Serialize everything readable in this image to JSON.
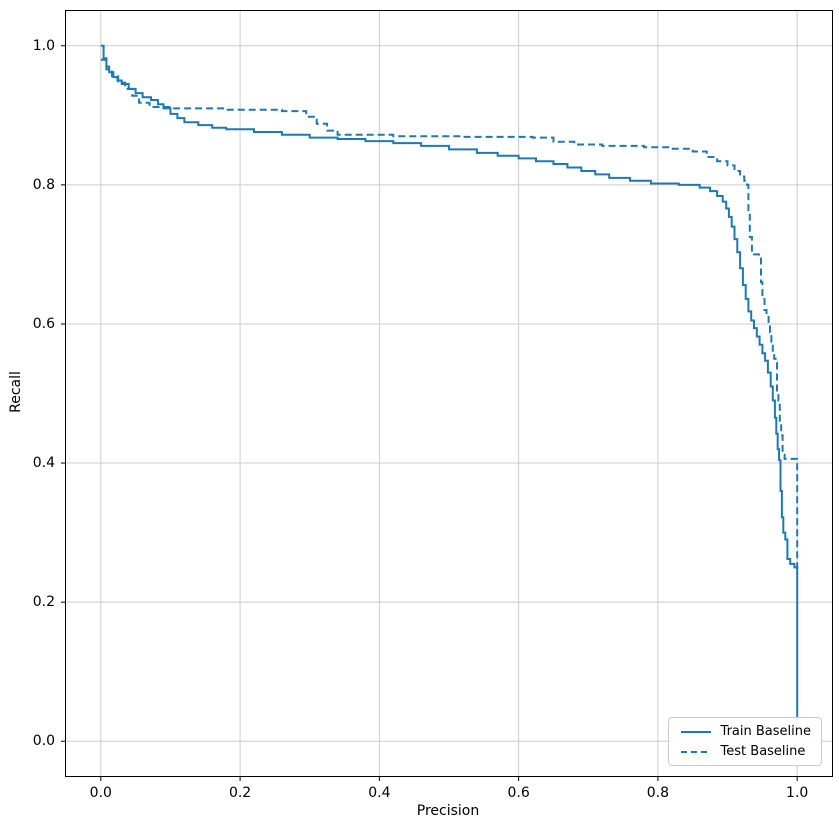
{
  "figure": {
    "background": "#ffffff"
  },
  "chart_data": {
    "type": "line",
    "title": "",
    "xlabel": "Precision",
    "ylabel": "Recall",
    "xlim": [
      -0.05,
      1.05
    ],
    "ylim": [
      -0.05,
      1.05
    ],
    "xticks": [
      0.0,
      0.2,
      0.4,
      0.6,
      0.8,
      1.0
    ],
    "yticks": [
      0.0,
      0.2,
      0.4,
      0.6,
      0.8,
      1.0
    ],
    "xtick_labels": [
      "0.0",
      "0.2",
      "0.4",
      "0.6",
      "0.8",
      "1.0"
    ],
    "ytick_labels": [
      "0.0",
      "0.2",
      "0.4",
      "0.6",
      "0.8",
      "1.0"
    ],
    "grid": true,
    "grid_color": "#cccccc",
    "line_color": "#1f77b4",
    "legend_position": "lower right",
    "series": [
      {
        "name": "Train Baseline",
        "style": "solid",
        "points": [
          [
            0.0,
            1.0
          ],
          [
            0.004,
            0.982
          ],
          [
            0.008,
            0.97
          ],
          [
            0.012,
            0.962
          ],
          [
            0.018,
            0.955
          ],
          [
            0.024,
            0.95
          ],
          [
            0.03,
            0.945
          ],
          [
            0.04,
            0.938
          ],
          [
            0.05,
            0.932
          ],
          [
            0.06,
            0.926
          ],
          [
            0.072,
            0.922
          ],
          [
            0.082,
            0.916
          ],
          [
            0.09,
            0.91
          ],
          [
            0.1,
            0.902
          ],
          [
            0.11,
            0.896
          ],
          [
            0.12,
            0.89
          ],
          [
            0.14,
            0.886
          ],
          [
            0.16,
            0.882
          ],
          [
            0.18,
            0.88
          ],
          [
            0.22,
            0.876
          ],
          [
            0.26,
            0.872
          ],
          [
            0.3,
            0.868
          ],
          [
            0.34,
            0.866
          ],
          [
            0.38,
            0.863
          ],
          [
            0.42,
            0.86
          ],
          [
            0.46,
            0.856
          ],
          [
            0.5,
            0.851
          ],
          [
            0.54,
            0.846
          ],
          [
            0.57,
            0.842
          ],
          [
            0.6,
            0.838
          ],
          [
            0.625,
            0.834
          ],
          [
            0.65,
            0.83
          ],
          [
            0.67,
            0.825
          ],
          [
            0.69,
            0.82
          ],
          [
            0.71,
            0.815
          ],
          [
            0.73,
            0.81
          ],
          [
            0.76,
            0.806
          ],
          [
            0.79,
            0.802
          ],
          [
            0.83,
            0.8
          ],
          [
            0.86,
            0.796
          ],
          [
            0.875,
            0.791
          ],
          [
            0.885,
            0.784
          ],
          [
            0.893,
            0.776
          ],
          [
            0.898,
            0.766
          ],
          [
            0.902,
            0.754
          ],
          [
            0.906,
            0.74
          ],
          [
            0.91,
            0.722
          ],
          [
            0.914,
            0.703
          ],
          [
            0.918,
            0.68
          ],
          [
            0.922,
            0.656
          ],
          [
            0.926,
            0.636
          ],
          [
            0.93,
            0.618
          ],
          [
            0.934,
            0.605
          ],
          [
            0.938,
            0.594
          ],
          [
            0.942,
            0.582
          ],
          [
            0.946,
            0.57
          ],
          [
            0.95,
            0.558
          ],
          [
            0.954,
            0.547
          ],
          [
            0.958,
            0.53
          ],
          [
            0.962,
            0.51
          ],
          [
            0.965,
            0.49
          ],
          [
            0.968,
            0.465
          ],
          [
            0.97,
            0.442
          ],
          [
            0.972,
            0.42
          ],
          [
            0.974,
            0.404
          ],
          [
            0.976,
            0.36
          ],
          [
            0.978,
            0.322
          ],
          [
            0.98,
            0.3
          ],
          [
            0.983,
            0.29
          ],
          [
            0.986,
            0.262
          ],
          [
            0.99,
            0.255
          ],
          [
            0.996,
            0.25
          ],
          [
            1.0,
            0.03
          ]
        ]
      },
      {
        "name": "Test Baseline",
        "style": "dashed",
        "points": [
          [
            0.0,
            0.98
          ],
          [
            0.008,
            0.966
          ],
          [
            0.016,
            0.956
          ],
          [
            0.025,
            0.947
          ],
          [
            0.035,
            0.938
          ],
          [
            0.045,
            0.928
          ],
          [
            0.055,
            0.918
          ],
          [
            0.07,
            0.912
          ],
          [
            0.1,
            0.91
          ],
          [
            0.18,
            0.908
          ],
          [
            0.26,
            0.906
          ],
          [
            0.295,
            0.898
          ],
          [
            0.31,
            0.888
          ],
          [
            0.325,
            0.878
          ],
          [
            0.34,
            0.872
          ],
          [
            0.42,
            0.87
          ],
          [
            0.52,
            0.869
          ],
          [
            0.62,
            0.868
          ],
          [
            0.65,
            0.862
          ],
          [
            0.68,
            0.858
          ],
          [
            0.72,
            0.856
          ],
          [
            0.78,
            0.854
          ],
          [
            0.82,
            0.852
          ],
          [
            0.85,
            0.848
          ],
          [
            0.87,
            0.84
          ],
          [
            0.885,
            0.834
          ],
          [
            0.9,
            0.828
          ],
          [
            0.91,
            0.82
          ],
          [
            0.918,
            0.812
          ],
          [
            0.924,
            0.806
          ],
          [
            0.928,
            0.8
          ],
          [
            0.93,
            0.76
          ],
          [
            0.932,
            0.725
          ],
          [
            0.935,
            0.7
          ],
          [
            0.945,
            0.694
          ],
          [
            0.948,
            0.66
          ],
          [
            0.95,
            0.64
          ],
          [
            0.953,
            0.62
          ],
          [
            0.956,
            0.612
          ],
          [
            0.959,
            0.6
          ],
          [
            0.961,
            0.588
          ],
          [
            0.963,
            0.574
          ],
          [
            0.965,
            0.56
          ],
          [
            0.967,
            0.55
          ],
          [
            0.969,
            0.544
          ],
          [
            0.971,
            0.5
          ],
          [
            0.973,
            0.49
          ],
          [
            0.975,
            0.458
          ],
          [
            0.977,
            0.44
          ],
          [
            0.979,
            0.412
          ],
          [
            0.982,
            0.406
          ],
          [
            1.0,
            0.402
          ],
          [
            1.0,
            0.24
          ]
        ]
      }
    ]
  }
}
